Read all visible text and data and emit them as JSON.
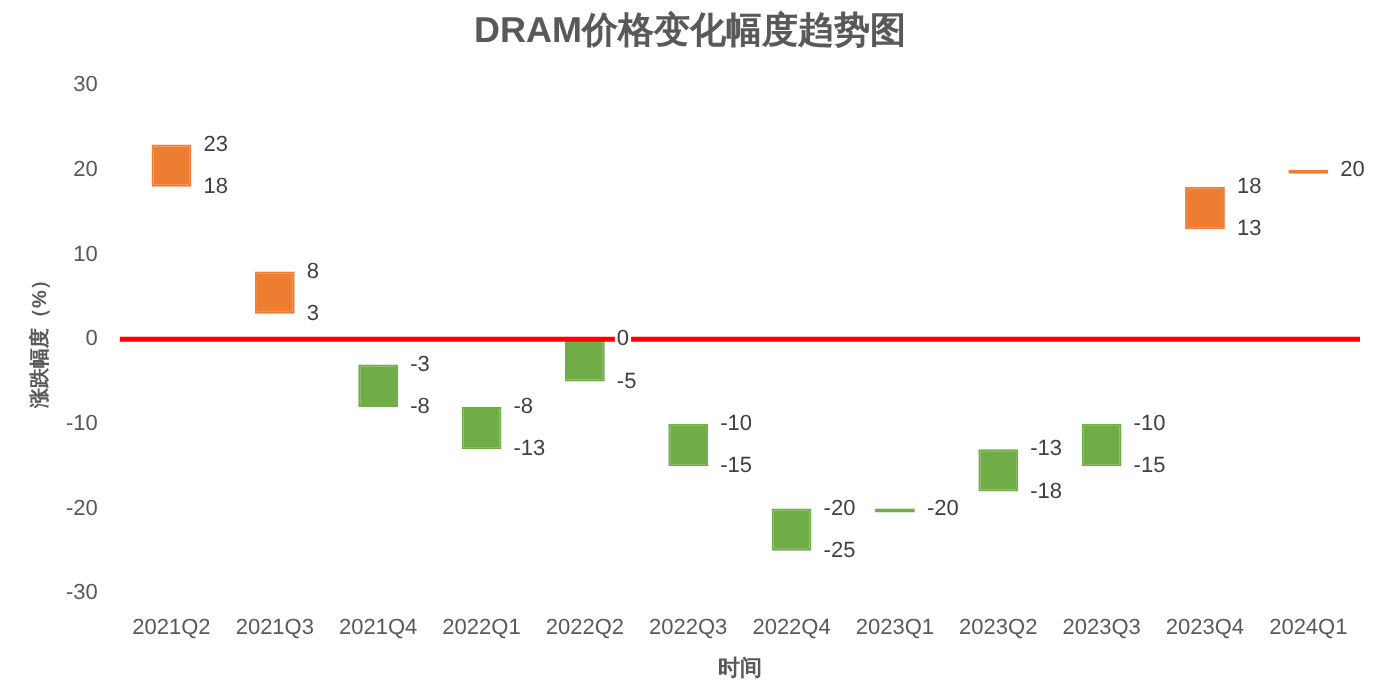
{
  "chart_data": {
    "type": "bar",
    "title": "DRAM价格变化幅度趋势图",
    "xlabel": "时间",
    "ylabel": "涨跌幅度（%）",
    "categories": [
      "2021Q2",
      "2021Q3",
      "2021Q4",
      "2022Q1",
      "2022Q2",
      "2022Q3",
      "2022Q4",
      "2023Q1",
      "2023Q2",
      "2023Q3",
      "2023Q4",
      "2024Q1"
    ],
    "base": [
      18,
      3,
      -8,
      -13,
      -5,
      -15,
      -25,
      -20,
      -18,
      -15,
      13,
      20
    ],
    "values": [
      5,
      5,
      5,
      5,
      5,
      5,
      5,
      0,
      5,
      5,
      5,
      0
    ],
    "colors": [
      "#ed7d31",
      "#ed7d31",
      "#70ad47",
      "#70ad47",
      "#70ad47",
      "#70ad47",
      "#70ad47",
      "#70ad47",
      "#70ad47",
      "#70ad47",
      "#ed7d31",
      "#ed7d31"
    ],
    "annotations": [
      {
        "text": "23",
        "x": "2021Q2",
        "y": 23
      },
      {
        "text": "18",
        "x": "2021Q2",
        "y": 18
      },
      {
        "text": "8",
        "x": "2021Q3",
        "y": 8
      },
      {
        "text": "3",
        "x": "2021Q3",
        "y": 3
      },
      {
        "text": "-3",
        "x": "2021Q4",
        "y": -3
      },
      {
        "text": "-8",
        "x": "2021Q4",
        "y": -8
      },
      {
        "text": "-8",
        "x": "2022Q1",
        "y": -8
      },
      {
        "text": "-13",
        "x": "2022Q1",
        "y": -13
      },
      {
        "text": "0",
        "x": "2022Q2",
        "y": 0
      },
      {
        "text": "-5",
        "x": "2022Q2",
        "y": -5
      },
      {
        "text": "-10",
        "x": "2022Q3",
        "y": -10
      },
      {
        "text": "-15",
        "x": "2022Q3",
        "y": -15
      },
      {
        "text": "-20",
        "x": "2022Q4",
        "y": -20
      },
      {
        "text": "-25",
        "x": "2022Q4",
        "y": -25
      },
      {
        "text": "-20",
        "x": "2023Q1",
        "y": -20
      },
      {
        "text": "-13",
        "x": "2023Q2",
        "y": -13
      },
      {
        "text": "-18",
        "x": "2023Q2",
        "y": -18
      },
      {
        "text": "-10",
        "x": "2023Q3",
        "y": -10
      },
      {
        "text": "-15",
        "x": "2023Q3",
        "y": -15
      },
      {
        "text": "18",
        "x": "2023Q4",
        "y": 18
      },
      {
        "text": "13",
        "x": "2023Q4",
        "y": 13
      },
      {
        "text": "20",
        "x": "2024Q1",
        "y": 20
      }
    ],
    "ref_lines": [
      {
        "axis": "y",
        "value": 0,
        "color": "#ff0000"
      }
    ],
    "ylim": [
      -30,
      30
    ],
    "yticks": [
      -30,
      -20,
      -10,
      0,
      10,
      20,
      30
    ],
    "grid": false,
    "legend": false
  }
}
